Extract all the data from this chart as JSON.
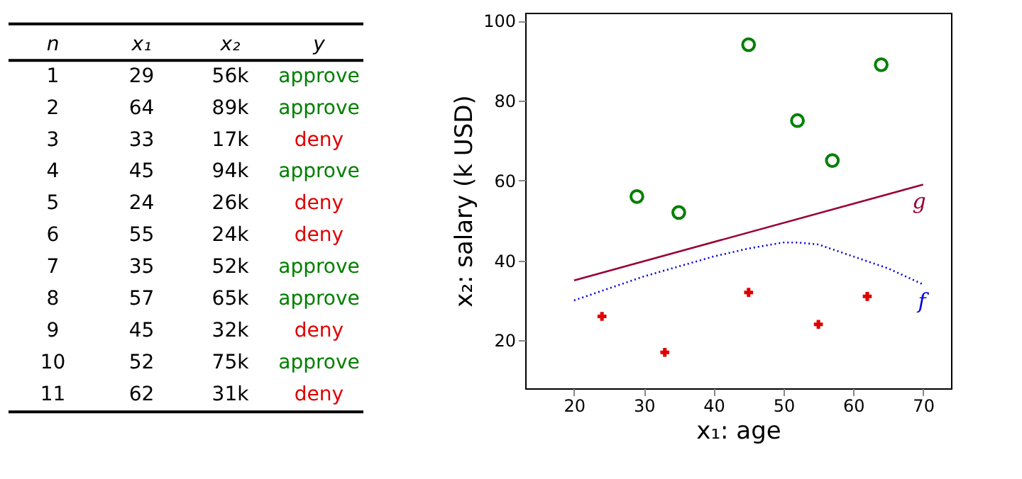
{
  "chart_data": {
    "type": "scatter",
    "xlabel": "x₁: age",
    "ylabel": "x₂: salary (k USD)",
    "xlim": [
      13,
      74
    ],
    "ylim": [
      8,
      102
    ],
    "xticks": [
      20,
      30,
      40,
      50,
      60,
      70
    ],
    "yticks": [
      20,
      40,
      60,
      80,
      100
    ],
    "grid": false,
    "legend": false,
    "annotations": [
      "n",
      "x₁",
      "x₂",
      "y",
      "1",
      "29",
      "56k",
      "approve",
      "2",
      "64",
      "89k",
      "approve",
      "3",
      "33",
      "17k",
      "deny",
      "4",
      "45",
      "94k",
      "approve",
      "5",
      "24",
      "26k",
      "deny",
      "6",
      "55",
      "24k",
      "deny",
      "7",
      "35",
      "52k",
      "approve",
      "8",
      "57",
      "65k",
      "approve",
      "9",
      "45",
      "32k",
      "deny",
      "10",
      "52",
      "75k",
      "approve",
      "11",
      "62",
      "31k",
      "deny"
    ],
    "series": [
      {
        "type": "scatter",
        "marker": "circle",
        "color": "#008000",
        "x": [
          29,
          64,
          45,
          35,
          57,
          52
        ],
        "values": [
          56,
          89,
          94,
          52,
          65,
          75
        ]
      },
      {
        "type": "scatter",
        "marker": "cross",
        "color": "#e00000",
        "x": [
          33,
          24,
          55,
          45,
          62
        ],
        "values": [
          17,
          26,
          24,
          32,
          31
        ]
      },
      {
        "type": "line",
        "name": "g",
        "marker": "none",
        "line_style": "solid",
        "color": "#990033",
        "x": [
          20,
          70
        ],
        "values": [
          35,
          59
        ]
      },
      {
        "type": "line",
        "name": "f",
        "marker": "none",
        "line_style": "dotted",
        "color": "#0000dd",
        "x": [
          20,
          30,
          40,
          45,
          50,
          52,
          55,
          60,
          65,
          70
        ],
        "values": [
          30,
          36,
          41,
          43,
          44.5,
          44.5,
          44,
          41,
          38,
          34
        ]
      }
    ]
  }
}
